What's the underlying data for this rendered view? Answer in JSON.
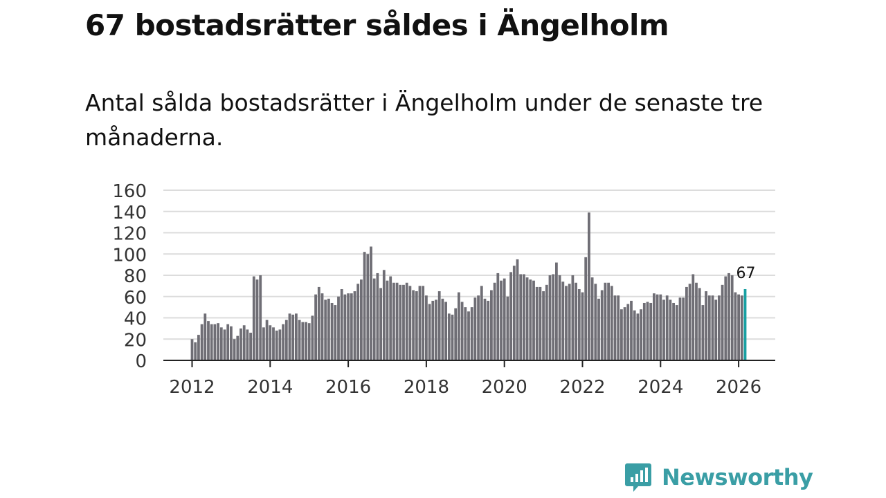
{
  "title": "67 bostadsrätter såldes i Ängelholm",
  "subtitle": "Antal sålda bostadsrätter i Ängelholm under de senaste tre månaderna.",
  "brand": {
    "name": "Newsworthy",
    "icon": "bar-chart-speech-icon",
    "color": "#3a9ea5"
  },
  "chart_data": {
    "type": "bar",
    "title": "Antal sålda bostadsrätter i Ängelholm under de senaste tre månaderna.",
    "xlabel": "",
    "ylabel": "",
    "ylim": [
      0,
      160
    ],
    "yticks": [
      "0",
      "20",
      "40",
      "60",
      "80",
      "100",
      "120",
      "140",
      "160"
    ],
    "xtick_labels": [
      "2012",
      "2014",
      "2016",
      "2018",
      "2020",
      "2022",
      "2024",
      "2026"
    ],
    "start": {
      "year": 2012,
      "month": 1
    },
    "grid": true,
    "bar_color": "#6f6e75",
    "highlight_color": "#18a0a2",
    "annotation": {
      "label": "67",
      "index": 170
    },
    "values": [
      20,
      17,
      24,
      34,
      44,
      37,
      34,
      34,
      35,
      31,
      29,
      34,
      32,
      20,
      23,
      30,
      33,
      29,
      26,
      79,
      76,
      80,
      31,
      38,
      33,
      31,
      28,
      29,
      34,
      38,
      44,
      43,
      44,
      38,
      36,
      36,
      35,
      42,
      62,
      69,
      63,
      57,
      58,
      54,
      52,
      60,
      67,
      62,
      63,
      63,
      65,
      72,
      76,
      102,
      100,
      107,
      77,
      82,
      68,
      85,
      75,
      79,
      73,
      73,
      71,
      71,
      73,
      70,
      66,
      65,
      70,
      70,
      61,
      53,
      56,
      57,
      65,
      58,
      55,
      44,
      43,
      49,
      64,
      55,
      50,
      46,
      50,
      59,
      61,
      70,
      58,
      56,
      66,
      73,
      82,
      75,
      77,
      60,
      83,
      89,
      95,
      81,
      81,
      78,
      76,
      75,
      69,
      69,
      65,
      71,
      80,
      81,
      92,
      80,
      74,
      70,
      72,
      80,
      73,
      67,
      64,
      97,
      139,
      78,
      72,
      58,
      66,
      73,
      73,
      70,
      61,
      61,
      48,
      50,
      53,
      56,
      47,
      44,
      48,
      54,
      55,
      54,
      63,
      62,
      62,
      57,
      61,
      57,
      54,
      52,
      59,
      59,
      69,
      72,
      81,
      73,
      68,
      52,
      65,
      61,
      61,
      57,
      61,
      71,
      79,
      82,
      80,
      64,
      62,
      61,
      67
    ]
  }
}
